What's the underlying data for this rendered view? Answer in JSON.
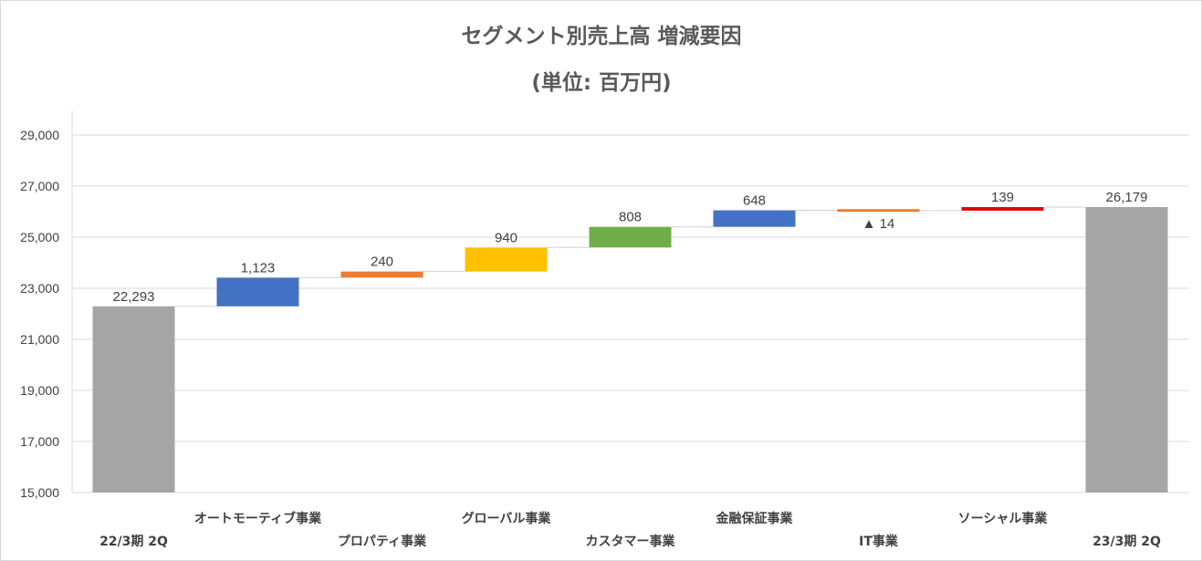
{
  "chart_data": {
    "type": "waterfall",
    "title": "セグメント別売上高 増減要因",
    "subtitle": "(単位: 百万円)",
    "xlabel": "",
    "ylabel": "",
    "ylim": [
      15000,
      29000
    ],
    "yticks": [
      15000,
      17000,
      19000,
      21000,
      23000,
      25000,
      27000,
      29000
    ],
    "ytick_labels": [
      "15,000",
      "17,000",
      "19,000",
      "21,000",
      "23,000",
      "25,000",
      "27,000",
      "29,000"
    ],
    "grid": true,
    "legend": "none",
    "categories": [
      "22/3期 2Q",
      "オートモーティブ事業",
      "プロパティ事業",
      "グローバル事業",
      "カスタマー事業",
      "金融保証事業",
      "IT事業",
      "ソーシャル事業",
      "23/3期 2Q"
    ],
    "bars": [
      {
        "category": "22/3期 2Q",
        "kind": "total",
        "value": 22293,
        "label": "22,293",
        "color": "#a5a5a5"
      },
      {
        "category": "オートモーティブ事業",
        "kind": "delta",
        "value": 1123,
        "label": "1,123",
        "color": "#4472c4"
      },
      {
        "category": "プロパティ事業",
        "kind": "delta",
        "value": 240,
        "label": "240",
        "color": "#ed7d31"
      },
      {
        "category": "グローバル事業",
        "kind": "delta",
        "value": 940,
        "label": "940",
        "color": "#ffc000"
      },
      {
        "category": "カスタマー事業",
        "kind": "delta",
        "value": 808,
        "label": "808",
        "color": "#70ad47"
      },
      {
        "category": "金融保証事業",
        "kind": "delta",
        "value": 648,
        "label": "648",
        "color": "#4472c4"
      },
      {
        "category": "IT事業",
        "kind": "delta",
        "value": -14,
        "label": "▲ 14",
        "color": "#ed7d31"
      },
      {
        "category": "ソーシャル事業",
        "kind": "delta",
        "value": 139,
        "label": "139",
        "color": "#e00000"
      },
      {
        "category": "23/3期 2Q",
        "kind": "total",
        "value": 26179,
        "label": "26,179",
        "color": "#a5a5a5"
      }
    ]
  }
}
